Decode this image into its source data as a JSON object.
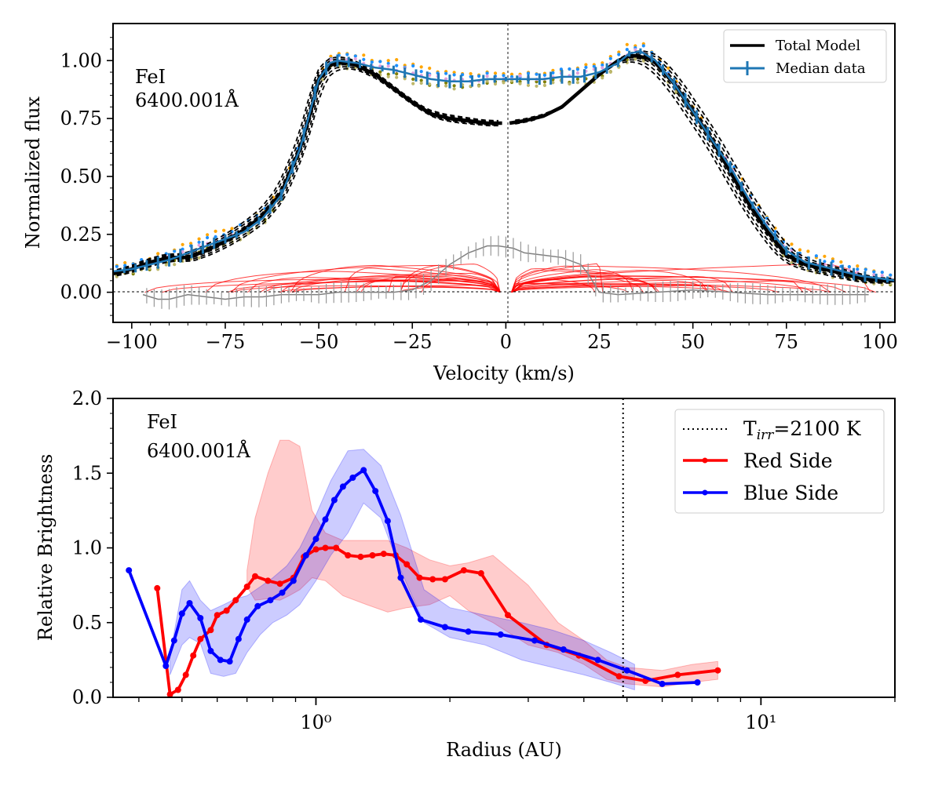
{
  "chart_data": [
    {
      "type": "line",
      "panel": "top",
      "xlabel": "Velocity (km/s)",
      "ylabel": "Normalized flux",
      "xlim": [
        -105,
        104
      ],
      "ylim": [
        -0.13,
        1.16
      ],
      "xticks": [
        -100,
        -75,
        -50,
        -25,
        0,
        25,
        50,
        75,
        100
      ],
      "xtick_labels": [
        "−100",
        "−75",
        "−50",
        "−25",
        "0",
        "25",
        "50",
        "75",
        "100"
      ],
      "yticks": [
        0.0,
        0.25,
        0.5,
        0.75,
        1.0
      ],
      "ytick_labels": [
        "0.00",
        "0.25",
        "0.50",
        "0.75",
        "1.00"
      ],
      "annotation": [
        "FeI",
        "6400.001Å"
      ],
      "legend": {
        "position": "top-right",
        "entries": [
          "Total Model",
          "Median data"
        ]
      },
      "series": [
        {
          "name": "Total Model",
          "color": "#000000",
          "x": [
            -105,
            -100,
            -95,
            -90,
            -85,
            -80,
            -75,
            -70,
            -65,
            -60,
            -55,
            -52,
            -50,
            -47,
            -45,
            -42,
            -40,
            -35,
            -30,
            -25,
            -20,
            -15,
            -10,
            -5,
            -1,
            1,
            5,
            10,
            15,
            20,
            25,
            30,
            33,
            35,
            38,
            40,
            45,
            50,
            55,
            60,
            65,
            70,
            75,
            80,
            85,
            90,
            95,
            100,
            104
          ],
          "values": [
            0.08,
            0.1,
            0.13,
            0.15,
            0.15,
            0.18,
            0.22,
            0.27,
            0.33,
            0.43,
            0.62,
            0.79,
            0.92,
            0.98,
            0.99,
            0.99,
            0.98,
            0.94,
            0.88,
            0.82,
            0.77,
            0.75,
            0.74,
            0.73,
            0.73,
            0.73,
            0.74,
            0.76,
            0.8,
            0.87,
            0.94,
            1.0,
            1.02,
            1.02,
            1.01,
            0.99,
            0.9,
            0.78,
            0.66,
            0.52,
            0.38,
            0.26,
            0.16,
            0.12,
            0.1,
            0.08,
            0.06,
            0.05,
            0.05
          ]
        },
        {
          "name": "Median data",
          "color": "#1f77b4",
          "x": [
            -105,
            -100,
            -95,
            -90,
            -85,
            -80,
            -75,
            -70,
            -65,
            -60,
            -55,
            -50,
            -47,
            -45,
            -40,
            -35,
            -30,
            -25,
            -20,
            -15,
            -10,
            -5,
            -2,
            2,
            5,
            10,
            15,
            20,
            25,
            30,
            33,
            36,
            40,
            45,
            50,
            55,
            60,
            65,
            70,
            75,
            80,
            85,
            90,
            95,
            100,
            104
          ],
          "values": [
            0.09,
            0.1,
            0.12,
            0.14,
            0.17,
            0.2,
            0.23,
            0.26,
            0.32,
            0.42,
            0.62,
            0.92,
            0.99,
            1.0,
            0.99,
            0.97,
            0.96,
            0.94,
            0.92,
            0.91,
            0.91,
            0.92,
            0.92,
            0.92,
            0.92,
            0.92,
            0.93,
            0.93,
            0.95,
            0.99,
            1.03,
            1.04,
            1.0,
            0.9,
            0.78,
            0.66,
            0.54,
            0.4,
            0.28,
            0.18,
            0.13,
            0.11,
            0.09,
            0.07,
            0.06,
            0.05
          ]
        },
        {
          "name": "Residual",
          "color": "#808080",
          "x": [
            -97,
            -93,
            -90,
            -85,
            -80,
            -75,
            -70,
            -65,
            -60,
            -55,
            -50,
            -45,
            -40,
            -35,
            -30,
            -25,
            -20,
            -15,
            -10,
            -5,
            -2,
            2,
            5,
            10,
            15,
            20,
            22,
            25,
            30,
            40,
            50,
            60,
            70,
            80,
            90,
            97
          ],
          "values": [
            -0.01,
            -0.03,
            -0.03,
            -0.01,
            -0.02,
            -0.03,
            -0.02,
            -0.02,
            -0.01,
            -0.01,
            -0.01,
            0.0,
            0.0,
            0.0,
            0.0,
            0.01,
            0.05,
            0.12,
            0.17,
            0.2,
            0.2,
            0.19,
            0.17,
            0.16,
            0.15,
            0.12,
            0.08,
            0.0,
            -0.01,
            0.0,
            0.01,
            0.0,
            -0.01,
            -0.01,
            -0.01,
            -0.01
          ]
        }
      ]
    },
    {
      "type": "line",
      "panel": "bottom",
      "xscale": "log",
      "xlabel": "Radius (AU)",
      "ylabel": "Relative Brightness",
      "xlim": [
        0.35,
        20
      ],
      "ylim": [
        0.0,
        2.0
      ],
      "xticks_major": [
        1,
        10
      ],
      "xtick_labels": [
        "10⁰",
        "10¹"
      ],
      "yticks": [
        0.0,
        0.5,
        1.0,
        1.5,
        2.0
      ],
      "ytick_labels": [
        "0.0",
        "0.5",
        "1.0",
        "1.5",
        "2.0"
      ],
      "annotation": [
        "FeI",
        "6400.001Å"
      ],
      "reference_line": {
        "x": 4.9,
        "label": "T_irr=2100 K",
        "label_main": "T",
        "label_sub": "irr",
        "label_rest": "=2100 K"
      },
      "legend": {
        "position": "top-right",
        "entries": [
          "T_irr=2100 K",
          "Red Side",
          "Blue Side"
        ]
      },
      "series": [
        {
          "name": "Red Side",
          "color": "#ff0000",
          "x": [
            0.44,
            0.47,
            0.49,
            0.51,
            0.53,
            0.55,
            0.58,
            0.6,
            0.63,
            0.66,
            0.7,
            0.73,
            0.78,
            0.83,
            0.89,
            0.94,
            1.0,
            1.05,
            1.11,
            1.18,
            1.26,
            1.34,
            1.42,
            1.51,
            1.6,
            1.71,
            1.83,
            1.95,
            2.15,
            2.35,
            2.7,
            3.3,
            3.9,
            4.8,
            5.5,
            6.5,
            8.0
          ],
          "values": [
            0.73,
            0.02,
            0.05,
            0.15,
            0.28,
            0.39,
            0.45,
            0.55,
            0.58,
            0.65,
            0.74,
            0.81,
            0.78,
            0.76,
            0.8,
            0.94,
            0.99,
            1.0,
            1.0,
            0.95,
            0.94,
            0.95,
            0.96,
            0.95,
            0.89,
            0.8,
            0.79,
            0.79,
            0.85,
            0.83,
            0.55,
            0.35,
            0.28,
            0.14,
            0.11,
            0.15,
            0.18
          ],
          "band_x": [
            0.7,
            0.73,
            0.78,
            0.83,
            0.87,
            0.92,
            0.98,
            1.05,
            1.15,
            1.3,
            1.45,
            1.6,
            1.8,
            2.0,
            2.2,
            2.5,
            3.0,
            3.5,
            4.0,
            4.5,
            5.0,
            6.0,
            7.0,
            8.0
          ],
          "band_lower": [
            0.74,
            0.65,
            0.66,
            0.65,
            0.68,
            0.72,
            0.8,
            0.78,
            0.68,
            0.62,
            0.57,
            0.6,
            0.62,
            0.68,
            0.58,
            0.5,
            0.35,
            0.3,
            0.22,
            0.12,
            0.09,
            0.07,
            0.1,
            0.12
          ],
          "band_upper": [
            0.85,
            1.2,
            1.5,
            1.72,
            1.72,
            1.68,
            1.25,
            1.1,
            1.05,
            1.05,
            1.05,
            1.0,
            0.92,
            0.88,
            0.9,
            0.95,
            0.75,
            0.5,
            0.38,
            0.25,
            0.2,
            0.18,
            0.22,
            0.24
          ]
        },
        {
          "name": "Blue Side",
          "color": "#0000ff",
          "x": [
            0.38,
            0.46,
            0.48,
            0.5,
            0.52,
            0.55,
            0.58,
            0.61,
            0.64,
            0.67,
            0.7,
            0.74,
            0.79,
            0.84,
            0.89,
            0.95,
            1.0,
            1.05,
            1.1,
            1.15,
            1.21,
            1.28,
            1.36,
            1.45,
            1.55,
            1.72,
            1.95,
            2.2,
            2.6,
            3.1,
            3.6,
            4.3,
            5.0,
            6.0,
            7.2
          ],
          "values": [
            0.85,
            0.21,
            0.38,
            0.56,
            0.63,
            0.53,
            0.31,
            0.25,
            0.24,
            0.39,
            0.52,
            0.61,
            0.65,
            0.7,
            0.78,
            0.95,
            1.06,
            1.19,
            1.32,
            1.41,
            1.47,
            1.52,
            1.38,
            1.18,
            0.8,
            0.52,
            0.47,
            0.44,
            0.42,
            0.38,
            0.32,
            0.25,
            0.18,
            0.09,
            0.1
          ],
          "band_x": [
            0.47,
            0.5,
            0.52,
            0.55,
            0.58,
            0.62,
            0.66,
            0.7,
            0.75,
            0.8,
            0.86,
            0.92,
            1.0,
            1.08,
            1.18,
            1.28,
            1.4,
            1.55,
            1.75,
            2.0,
            2.4,
            2.9,
            3.4,
            4.0,
            4.6,
            5.2
          ],
          "band_lower": [
            0.15,
            0.35,
            0.4,
            0.36,
            0.16,
            0.14,
            0.16,
            0.3,
            0.42,
            0.5,
            0.55,
            0.62,
            0.78,
            0.95,
            1.1,
            1.3,
            1.2,
            0.85,
            0.5,
            0.4,
            0.35,
            0.25,
            0.2,
            0.15,
            0.1,
            0.05
          ],
          "band_upper": [
            0.28,
            0.72,
            0.78,
            0.65,
            0.58,
            0.62,
            0.66,
            0.68,
            0.74,
            0.8,
            0.88,
            1.0,
            1.22,
            1.45,
            1.65,
            1.66,
            1.55,
            1.22,
            0.72,
            0.6,
            0.55,
            0.5,
            0.45,
            0.38,
            0.3,
            0.22
          ]
        }
      ]
    }
  ]
}
